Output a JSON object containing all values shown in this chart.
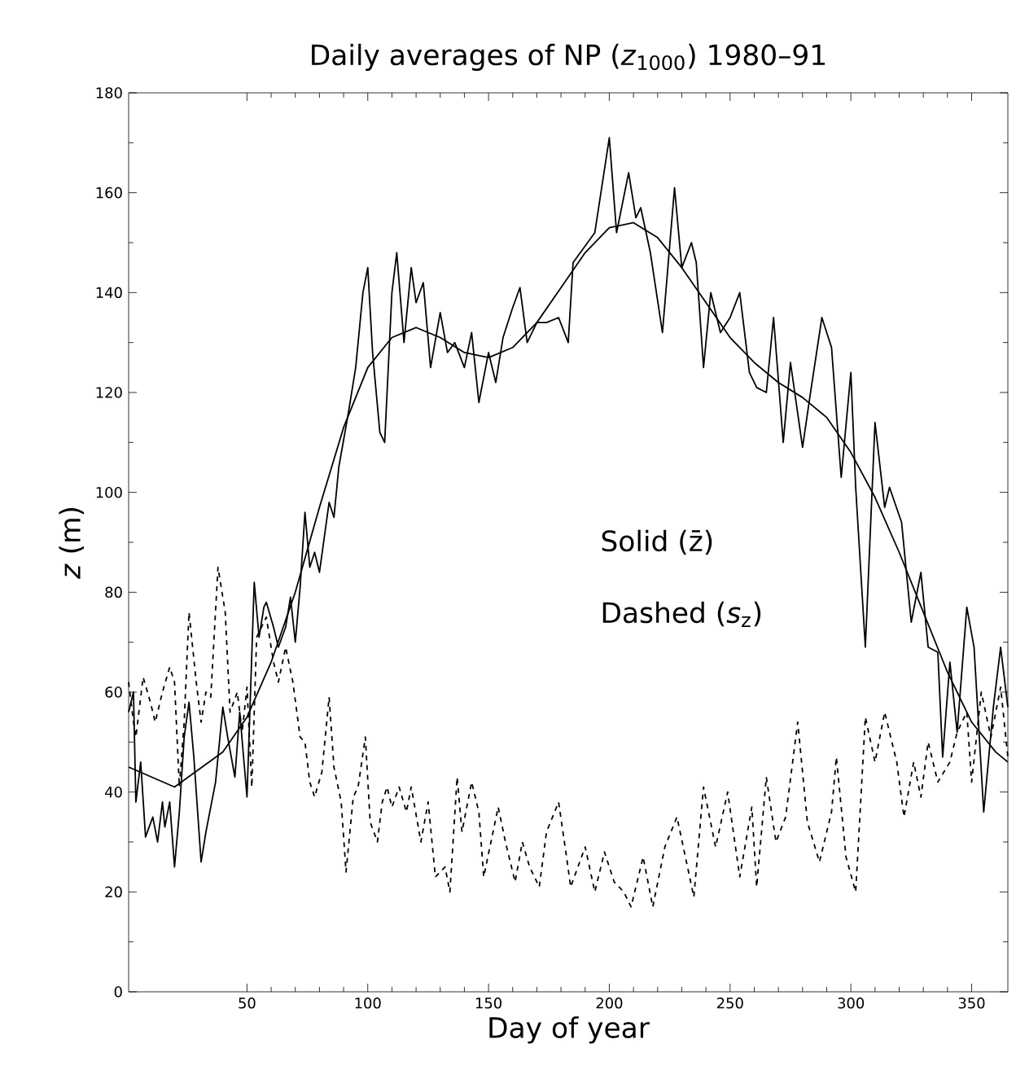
{
  "chart_data": {
    "type": "line",
    "title": "Daily averages of NP (*z*$_{1000}$) 1980–91",
    "xlabel": "Day of year",
    "ylabel": "*z* (m)",
    "annotations": [
      "Solid (z̄)",
      "Dashed (*s*$_{z}$)"
    ],
    "xlim": [
      1,
      365
    ],
    "xticks": [
      50,
      100,
      150,
      200,
      250,
      300,
      350
    ],
    "ylim": [
      0,
      180
    ],
    "yticks": [
      0,
      20,
      40,
      60,
      80,
      100,
      120,
      140,
      160,
      180
    ],
    "grid": false,
    "series": [
      {
        "color": "#000000",
        "line_style": "solid",
        "x": [
          1,
          3,
          4,
          6,
          8,
          11,
          13,
          15,
          16,
          18,
          20,
          22,
          24,
          26,
          28,
          31,
          33,
          37,
          40,
          42,
          45,
          47,
          50,
          53,
          55,
          57,
          58,
          61,
          63,
          66,
          68,
          70,
          72,
          74,
          76,
          78,
          80,
          84,
          86,
          88,
          92,
          95,
          98,
          100,
          102,
          105,
          107,
          110,
          112,
          115,
          118,
          120,
          123,
          126,
          130,
          133,
          136,
          140,
          143,
          146,
          150,
          153,
          156,
          160,
          163,
          166,
          170,
          174,
          179,
          183,
          185,
          194,
          200,
          203,
          208,
          211,
          213,
          217,
          222,
          227,
          230,
          234,
          236,
          239,
          242,
          246,
          250,
          254,
          258,
          261,
          265,
          268,
          272,
          275,
          280,
          283,
          288,
          292,
          296,
          300,
          302,
          306,
          310,
          314,
          316,
          321,
          325,
          329,
          332,
          336,
          338,
          341,
          344,
          348,
          351,
          355,
          359,
          362,
          365
        ],
        "values": [
          56,
          60,
          38,
          46,
          31,
          35,
          30,
          38,
          33,
          38,
          25,
          36,
          51,
          58,
          47,
          26,
          32,
          42,
          57,
          51,
          43,
          56,
          39,
          82,
          71,
          77,
          78,
          73,
          69,
          73,
          79,
          70,
          81,
          96,
          85,
          88,
          84,
          98,
          95,
          105,
          116,
          125,
          140,
          145,
          128,
          112,
          110,
          140,
          148,
          130,
          145,
          138,
          142,
          125,
          136,
          128,
          130,
          125,
          132,
          118,
          128,
          122,
          131,
          137,
          141,
          130,
          134,
          134,
          135,
          130,
          146,
          152,
          171,
          152,
          164,
          155,
          157,
          148,
          132,
          161,
          145,
          150,
          146,
          125,
          140,
          132,
          135,
          140,
          124,
          121,
          120,
          135,
          110,
          126,
          109,
          119,
          135,
          129,
          103,
          124,
          101,
          69,
          114,
          97,
          101,
          94,
          74,
          84,
          69,
          68,
          47,
          66,
          52,
          77,
          69,
          36,
          57,
          69,
          57
        ]
      },
      {
        "color": "#000000",
        "line_style": "solid",
        "x": [
          1,
          20,
          40,
          50,
          60,
          70,
          80,
          90,
          100,
          110,
          120,
          130,
          140,
          150,
          160,
          170,
          180,
          190,
          200,
          210,
          220,
          230,
          240,
          250,
          260,
          270,
          280,
          290,
          300,
          310,
          320,
          330,
          340,
          350,
          360,
          365
        ],
        "values": [
          45,
          41,
          48,
          55,
          66,
          80,
          97,
          113,
          125,
          131,
          133,
          131,
          128,
          127,
          129,
          134,
          141,
          148,
          153,
          154,
          151,
          145,
          138,
          131,
          126,
          122,
          119,
          115,
          108,
          99,
          88,
          76,
          64,
          54,
          48,
          46
        ]
      },
      {
        "color": "#000000",
        "line_style": "dashed",
        "x": [
          1,
          3,
          4,
          7,
          10,
          12,
          15,
          18,
          20,
          22,
          24,
          26,
          29,
          31,
          33,
          35,
          38,
          41,
          43,
          46,
          48,
          50,
          52,
          54,
          58,
          61,
          63,
          66,
          69,
          72,
          74,
          76,
          78,
          81,
          84,
          86,
          89,
          91,
          94,
          96,
          99,
          101,
          104,
          106,
          108,
          110,
          113,
          116,
          118,
          122,
          125,
          128,
          132,
          134,
          137,
          139,
          143,
          146,
          148,
          151,
          154,
          157,
          161,
          164,
          167,
          171,
          174,
          179,
          182,
          184,
          190,
          194,
          198,
          202,
          206,
          209,
          214,
          218,
          223,
          228,
          235,
          239,
          244,
          249,
          254,
          259,
          261,
          265,
          269,
          273,
          278,
          282,
          287,
          292,
          294,
          298,
          302,
          306,
          310,
          314,
          319,
          322,
          326,
          329,
          332,
          336,
          341,
          344,
          348,
          350,
          354,
          358,
          362,
          365
        ],
        "values": [
          62,
          54,
          51,
          63,
          58,
          54,
          60,
          65,
          62,
          41,
          54,
          76,
          62,
          54,
          60,
          59,
          85,
          76,
          56,
          60,
          52,
          61,
          41,
          71,
          75,
          66,
          62,
          69,
          62,
          51,
          50,
          42,
          39,
          44,
          59,
          45,
          38,
          24,
          39,
          41,
          51,
          34,
          30,
          38,
          41,
          37,
          41,
          36,
          41,
          30,
          38,
          23,
          25,
          20,
          43,
          32,
          42,
          36,
          23,
          30,
          37,
          30,
          22,
          30,
          25,
          21,
          32,
          38,
          28,
          21,
          29,
          20,
          28,
          22,
          20,
          17,
          27,
          17,
          29,
          35,
          19,
          41,
          29,
          40,
          23,
          37,
          21,
          43,
          30,
          35,
          54,
          34,
          26,
          36,
          47,
          27,
          20,
          55,
          46,
          56,
          46,
          35,
          46,
          39,
          50,
          42,
          46,
          52,
          56,
          42,
          60,
          51,
          61,
          47
        ]
      }
    ]
  }
}
